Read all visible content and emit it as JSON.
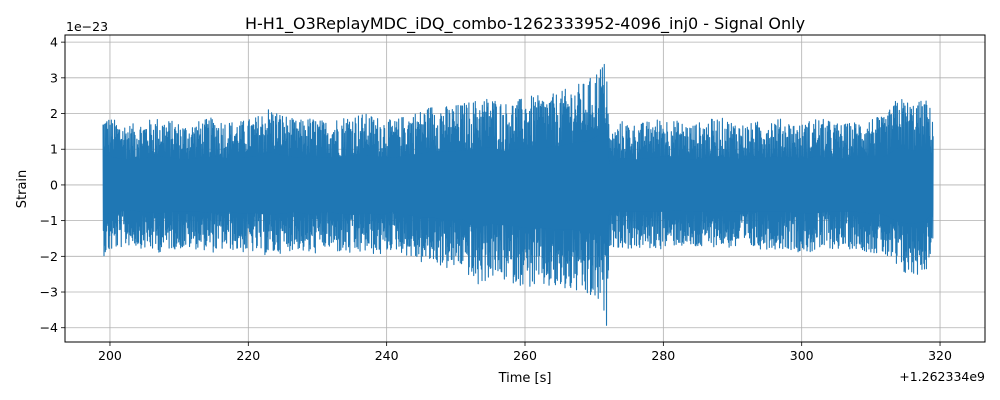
{
  "chart_data": {
    "type": "line",
    "title": "H-H1_O3ReplayMDC_iDQ_combo-1262333952-4096_inj0 - Signal Only",
    "xlabel": "Time [s]",
    "ylabel": "Strain",
    "x_offset_label": "+1.262334e9",
    "y_scale_label": "1e−23",
    "xlim": [
      193.5,
      326.5
    ],
    "ylim": [
      -4.4,
      4.2
    ],
    "x_ticks": [
      200,
      220,
      240,
      260,
      280,
      300,
      320
    ],
    "x_tick_labels": [
      "200",
      "220",
      "240",
      "260",
      "280",
      "300",
      "320"
    ],
    "y_ticks": [
      -4,
      -3,
      -2,
      -1,
      0,
      1,
      2,
      3,
      4
    ],
    "y_tick_labels": [
      "−4",
      "−3",
      "−2",
      "−1",
      "0",
      "1",
      "2",
      "3",
      "4"
    ],
    "grid": true,
    "line_color": "#1f77b4",
    "series": [
      {
        "x": [
          199,
          201,
          203,
          205,
          207,
          209,
          211,
          213,
          215,
          217,
          219,
          221,
          223,
          225,
          227,
          229,
          231,
          233,
          235,
          237,
          239,
          241,
          243,
          245,
          247,
          249,
          251,
          253,
          255,
          257,
          259,
          261,
          263,
          265,
          267,
          269,
          271,
          271.8,
          272.2,
          274,
          276,
          278,
          280,
          282,
          284,
          286,
          288,
          290,
          292,
          294,
          296,
          298,
          300,
          302,
          304,
          306,
          308,
          310,
          312,
          314,
          316,
          318,
          319
        ],
        "upper": [
          2.0,
          1.8,
          1.7,
          1.8,
          1.9,
          1.8,
          1.7,
          1.8,
          1.9,
          1.8,
          1.8,
          1.9,
          2.2,
          2.0,
          1.8,
          1.9,
          1.8,
          1.9,
          2.0,
          2.0,
          1.9,
          1.8,
          2.0,
          2.1,
          2.3,
          2.2,
          2.3,
          2.4,
          2.5,
          2.3,
          2.4,
          2.5,
          2.5,
          2.6,
          2.8,
          2.9,
          3.4,
          3.5,
          1.4,
          1.8,
          1.7,
          1.8,
          1.9,
          1.8,
          1.7,
          1.8,
          1.9,
          1.8,
          1.7,
          1.8,
          1.9,
          1.8,
          1.7,
          1.9,
          1.8,
          1.7,
          1.8,
          1.9,
          1.9,
          2.5,
          2.3,
          2.4,
          2.0
        ],
        "lower": [
          -2.0,
          -1.8,
          -1.7,
          -1.8,
          -1.9,
          -1.8,
          -1.8,
          -1.8,
          -1.9,
          -1.8,
          -1.9,
          -1.9,
          -2.0,
          -1.9,
          -1.8,
          -2.0,
          -1.8,
          -1.9,
          -2.0,
          -1.9,
          -2.0,
          -1.8,
          -2.0,
          -2.2,
          -2.2,
          -2.4,
          -2.3,
          -2.9,
          -2.6,
          -2.7,
          -2.8,
          -2.9,
          -2.9,
          -3.0,
          -3.0,
          -3.2,
          -3.4,
          -4.0,
          -1.7,
          -1.8,
          -1.8,
          -1.8,
          -1.8,
          -1.7,
          -1.8,
          -1.8,
          -1.7,
          -1.8,
          -1.8,
          -1.8,
          -1.8,
          -1.8,
          -1.9,
          -1.9,
          -1.8,
          -1.8,
          -1.8,
          -1.9,
          -2.0,
          -2.5,
          -2.6,
          -2.4,
          -1.7
        ]
      }
    ]
  }
}
